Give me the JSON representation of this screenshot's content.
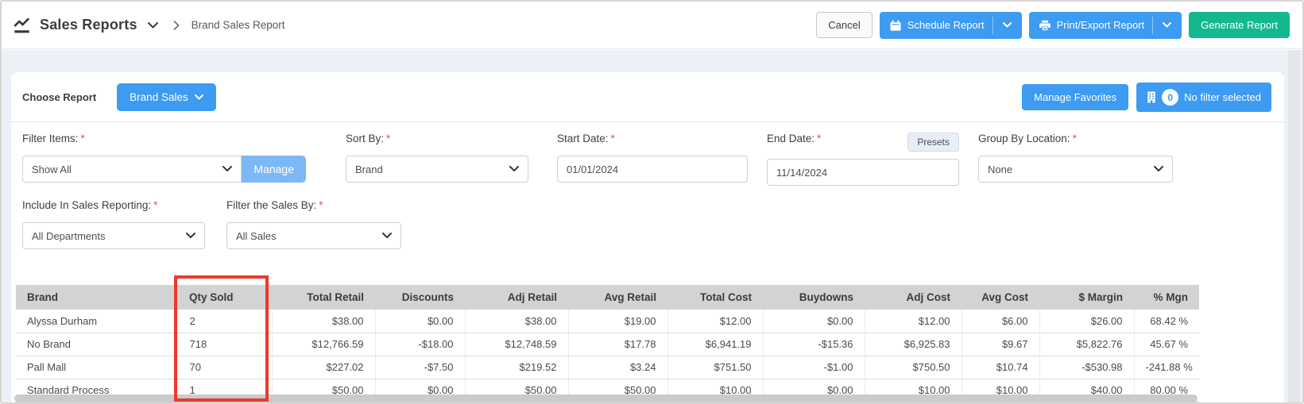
{
  "header": {
    "title": "Sales Reports",
    "breadcrumb_current": "Brand Sales Report",
    "buttons": {
      "cancel": "Cancel",
      "schedule": "Schedule Report",
      "print_export": "Print/Export Report",
      "generate": "Generate Report"
    }
  },
  "report_bar": {
    "choose_report_label": "Choose Report",
    "selected_report": "Brand Sales",
    "manage_favorites": "Manage Favorites",
    "filter_count": "0",
    "filter_status": "No filter selected"
  },
  "filters": {
    "required_marker": "*",
    "filter_items": {
      "label": "Filter Items:",
      "value": "Show All",
      "manage_button": "Manage"
    },
    "sort_by": {
      "label": "Sort By:",
      "value": "Brand"
    },
    "start_date": {
      "label": "Start Date:",
      "value": "01/01/2024"
    },
    "end_date": {
      "label": "End Date:",
      "value": "11/14/2024",
      "presets_button": "Presets"
    },
    "group_by_location": {
      "label": "Group By Location:",
      "value": "None"
    },
    "include_in_sales_reporting": {
      "label": "Include In Sales Reporting:",
      "value": "All Departments"
    },
    "filter_sales_by": {
      "label": "Filter the Sales By:",
      "value": "All Sales"
    }
  },
  "table": {
    "columns": [
      "Brand",
      "Qty Sold",
      "Total Retail",
      "Discounts",
      "Adj Retail",
      "Avg Retail",
      "Total Cost",
      "Buydowns",
      "Adj Cost",
      "Avg Cost",
      "$ Margin",
      "% Mgn"
    ],
    "rows": [
      [
        "Alyssa Durham",
        "2",
        "$38.00",
        "$0.00",
        "$38.00",
        "$19.00",
        "$12.00",
        "$0.00",
        "$12.00",
        "$6.00",
        "$26.00",
        "68.42 %"
      ],
      [
        "No Brand",
        "718",
        "$12,766.59",
        "-$18.00",
        "$12,748.59",
        "$17.78",
        "$6,941.19",
        "-$15.36",
        "$6,925.83",
        "$9.67",
        "$5,822.76",
        "45.67 %"
      ],
      [
        "Pall Mall",
        "70",
        "$227.02",
        "-$7.50",
        "$219.52",
        "$3.24",
        "$751.50",
        "-$1.00",
        "$750.50",
        "$10.74",
        "-$530.98",
        "-241.88 %"
      ],
      [
        "Standard Process",
        "1",
        "$50.00",
        "$0.00",
        "$50.00",
        "$50.00",
        "$10.00",
        "$0.00",
        "$10.00",
        "$10.00",
        "$40.00",
        "80.00 %"
      ]
    ],
    "highlight": {
      "column": "Qty Sold",
      "color": "#ea3a2c"
    }
  },
  "colors": {
    "primary_blue": "#3d9bf2",
    "light_blue": "#7cb8f5",
    "green": "#14b890",
    "header_gray": "#d3d3d3",
    "page_background": "#eef0f7",
    "highlight_red": "#ea3a2c",
    "required_red": "#d9534f"
  }
}
